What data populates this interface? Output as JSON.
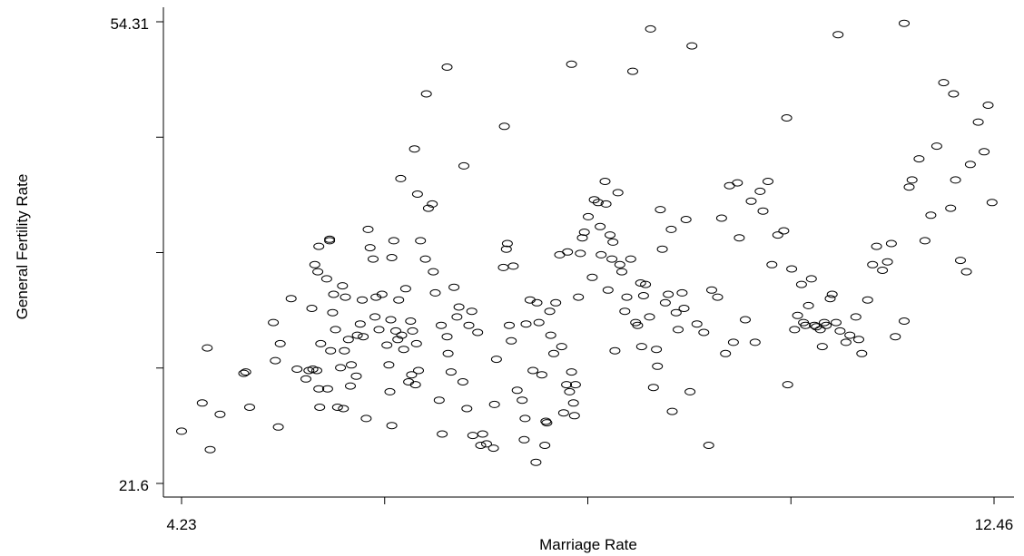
{
  "chart_data": {
    "type": "scatter",
    "title": "",
    "xlabel": "Marriage Rate",
    "ylabel": "General Fertility Rate",
    "xlim": [
      4.23,
      12.46
    ],
    "ylim": [
      21.6,
      54.31
    ],
    "x_tick_labels": [
      "4.23",
      "12.46"
    ],
    "y_tick_labels": [
      "54.31",
      "21.6"
    ],
    "grid": false,
    "marker": "hollow-circle",
    "points": [
      [
        4.23,
        25.3
      ],
      [
        4.49,
        31.2
      ],
      [
        4.52,
        24.0
      ],
      [
        4.44,
        27.3
      ],
      [
        4.62,
        26.5
      ],
      [
        4.88,
        29.5
      ],
      [
        4.86,
        29.4
      ],
      [
        4.92,
        27.0
      ],
      [
        5.18,
        30.3
      ],
      [
        5.23,
        31.5
      ],
      [
        5.16,
        33.0
      ],
      [
        5.34,
        34.7
      ],
      [
        5.21,
        25.6
      ],
      [
        5.4,
        29.7
      ],
      [
        5.49,
        29.0
      ],
      [
        5.52,
        29.6
      ],
      [
        5.6,
        29.6
      ],
      [
        5.62,
        28.3
      ],
      [
        5.63,
        27.0
      ],
      [
        5.64,
        31.5
      ],
      [
        5.56,
        29.7
      ],
      [
        5.58,
        37.1
      ],
      [
        5.55,
        34.0
      ],
      [
        5.62,
        38.4
      ],
      [
        5.61,
        36.6
      ],
      [
        5.73,
        38.8
      ],
      [
        5.7,
        36.1
      ],
      [
        5.73,
        38.9
      ],
      [
        5.76,
        33.7
      ],
      [
        5.74,
        31.0
      ],
      [
        5.77,
        35.0
      ],
      [
        5.79,
        32.5
      ],
      [
        5.71,
        28.3
      ],
      [
        5.81,
        27.0
      ],
      [
        5.84,
        29.8
      ],
      [
        5.89,
        34.8
      ],
      [
        5.86,
        35.6
      ],
      [
        5.87,
        26.9
      ],
      [
        5.95,
        30.0
      ],
      [
        5.88,
        31.0
      ],
      [
        5.92,
        31.8
      ],
      [
        5.94,
        28.5
      ],
      [
        6.0,
        29.2
      ],
      [
        6.01,
        32.1
      ],
      [
        6.04,
        32.9
      ],
      [
        6.06,
        34.6
      ],
      [
        6.07,
        32.0
      ],
      [
        6.1,
        26.2
      ],
      [
        6.12,
        39.6
      ],
      [
        6.14,
        38.3
      ],
      [
        6.17,
        37.5
      ],
      [
        6.2,
        34.8
      ],
      [
        6.19,
        33.4
      ],
      [
        6.23,
        32.5
      ],
      [
        6.26,
        35.0
      ],
      [
        6.31,
        31.4
      ],
      [
        6.33,
        30.0
      ],
      [
        6.34,
        28.1
      ],
      [
        6.35,
        33.2
      ],
      [
        6.36,
        37.6
      ],
      [
        6.38,
        38.8
      ],
      [
        6.4,
        32.4
      ],
      [
        6.42,
        31.8
      ],
      [
        6.43,
        34.6
      ],
      [
        6.46,
        32.1
      ],
      [
        6.48,
        31.1
      ],
      [
        6.5,
        35.4
      ],
      [
        6.53,
        28.8
      ],
      [
        6.55,
        33.1
      ],
      [
        6.56,
        29.3
      ],
      [
        6.57,
        32.4
      ],
      [
        6.6,
        28.6
      ],
      [
        6.61,
        31.5
      ],
      [
        6.63,
        29.6
      ],
      [
        6.65,
        38.8
      ],
      [
        6.7,
        37.5
      ],
      [
        6.77,
        41.4
      ],
      [
        6.59,
        45.3
      ],
      [
        6.62,
        42.1
      ],
      [
        6.45,
        43.2
      ],
      [
        6.71,
        49.2
      ],
      [
        6.73,
        41.1
      ],
      [
        6.78,
        36.6
      ],
      [
        6.8,
        35.1
      ],
      [
        6.84,
        27.5
      ],
      [
        6.86,
        32.8
      ],
      [
        6.87,
        25.1
      ],
      [
        6.92,
        32.0
      ],
      [
        6.93,
        30.8
      ],
      [
        6.96,
        29.5
      ],
      [
        6.99,
        35.5
      ],
      [
        7.02,
        33.4
      ],
      [
        7.04,
        34.1
      ],
      [
        7.08,
        28.8
      ],
      [
        7.09,
        44.1
      ],
      [
        7.12,
        26.9
      ],
      [
        7.14,
        32.8
      ],
      [
        7.17,
        33.8
      ],
      [
        7.18,
        25.0
      ],
      [
        7.23,
        32.3
      ],
      [
        7.26,
        24.3
      ],
      [
        7.28,
        25.1
      ],
      [
        7.32,
        24.4
      ],
      [
        7.39,
        24.1
      ],
      [
        7.4,
        27.2
      ],
      [
        7.42,
        30.4
      ],
      [
        7.49,
        36.9
      ],
      [
        7.52,
        38.2
      ],
      [
        7.53,
        38.6
      ],
      [
        7.55,
        32.8
      ],
      [
        7.57,
        31.7
      ],
      [
        7.59,
        37.0
      ],
      [
        7.63,
        28.2
      ],
      [
        7.68,
        27.5
      ],
      [
        7.7,
        24.7
      ],
      [
        7.71,
        26.2
      ],
      [
        7.72,
        32.9
      ],
      [
        7.76,
        34.6
      ],
      [
        7.79,
        29.6
      ],
      [
        7.82,
        23.1
      ],
      [
        7.83,
        34.4
      ],
      [
        7.85,
        33.0
      ],
      [
        7.88,
        29.3
      ],
      [
        7.91,
        24.3
      ],
      [
        7.92,
        26.0
      ],
      [
        7.93,
        25.9
      ],
      [
        7.96,
        33.8
      ],
      [
        7.97,
        32.1
      ],
      [
        8.0,
        30.8
      ],
      [
        8.02,
        34.4
      ],
      [
        8.06,
        37.8
      ],
      [
        8.08,
        31.3
      ],
      [
        8.1,
        26.6
      ],
      [
        8.13,
        28.6
      ],
      [
        8.14,
        38.0
      ],
      [
        8.16,
        28.1
      ],
      [
        8.18,
        29.5
      ],
      [
        8.2,
        27.3
      ],
      [
        8.21,
        26.4
      ],
      [
        8.22,
        28.6
      ],
      [
        8.25,
        34.8
      ],
      [
        8.27,
        37.9
      ],
      [
        8.29,
        39.0
      ],
      [
        8.31,
        39.4
      ],
      [
        8.35,
        40.5
      ],
      [
        8.39,
        36.2
      ],
      [
        8.41,
        41.7
      ],
      [
        8.45,
        41.5
      ],
      [
        8.47,
        39.8
      ],
      [
        8.48,
        37.8
      ],
      [
        8.52,
        43.0
      ],
      [
        8.53,
        41.4
      ],
      [
        8.55,
        35.3
      ],
      [
        8.57,
        39.2
      ],
      [
        8.59,
        37.5
      ],
      [
        8.6,
        38.7
      ],
      [
        8.62,
        31.0
      ],
      [
        8.65,
        42.2
      ],
      [
        8.67,
        37.1
      ],
      [
        8.69,
        36.6
      ],
      [
        8.72,
        33.8
      ],
      [
        8.74,
        34.8
      ],
      [
        8.78,
        37.5
      ],
      [
        8.83,
        33.0
      ],
      [
        8.85,
        32.8
      ],
      [
        8.88,
        35.8
      ],
      [
        8.89,
        31.3
      ],
      [
        8.91,
        34.9
      ],
      [
        8.93,
        35.7
      ],
      [
        8.97,
        33.4
      ],
      [
        9.01,
        28.4
      ],
      [
        9.04,
        31.1
      ],
      [
        9.05,
        29.9
      ],
      [
        9.08,
        41.0
      ],
      [
        9.1,
        38.2
      ],
      [
        9.13,
        34.4
      ],
      [
        9.16,
        35.0
      ],
      [
        9.19,
        39.6
      ],
      [
        9.2,
        26.7
      ],
      [
        9.24,
        33.7
      ],
      [
        9.26,
        32.5
      ],
      [
        9.3,
        35.1
      ],
      [
        9.32,
        34.0
      ],
      [
        9.34,
        40.3
      ],
      [
        9.38,
        28.1
      ],
      [
        9.45,
        32.9
      ],
      [
        9.52,
        32.3
      ],
      [
        9.57,
        24.3
      ],
      [
        9.6,
        35.3
      ],
      [
        9.66,
        34.8
      ],
      [
        9.7,
        40.4
      ],
      [
        9.74,
        30.8
      ],
      [
        9.78,
        42.7
      ],
      [
        9.82,
        31.6
      ],
      [
        9.86,
        42.9
      ],
      [
        9.88,
        39.0
      ],
      [
        9.94,
        33.2
      ],
      [
        10.0,
        41.6
      ],
      [
        10.04,
        31.6
      ],
      [
        10.09,
        42.3
      ],
      [
        10.12,
        40.9
      ],
      [
        10.17,
        43.0
      ],
      [
        10.21,
        37.1
      ],
      [
        10.27,
        39.2
      ],
      [
        10.33,
        39.5
      ],
      [
        10.37,
        28.6
      ],
      [
        10.41,
        36.8
      ],
      [
        10.44,
        32.5
      ],
      [
        10.47,
        33.5
      ],
      [
        10.51,
        35.7
      ],
      [
        10.53,
        33.0
      ],
      [
        10.55,
        32.8
      ],
      [
        10.58,
        34.2
      ],
      [
        10.61,
        36.1
      ],
      [
        10.64,
        32.8
      ],
      [
        10.66,
        32.7
      ],
      [
        10.7,
        32.5
      ],
      [
        10.72,
        31.3
      ],
      [
        10.74,
        33.0
      ],
      [
        10.76,
        32.8
      ],
      [
        10.8,
        34.7
      ],
      [
        10.82,
        35.0
      ],
      [
        10.86,
        33.0
      ],
      [
        10.9,
        32.4
      ],
      [
        10.96,
        31.6
      ],
      [
        11.0,
        32.1
      ],
      [
        11.06,
        33.4
      ],
      [
        11.09,
        31.8
      ],
      [
        11.12,
        30.8
      ],
      [
        11.18,
        34.6
      ],
      [
        11.23,
        37.1
      ],
      [
        11.27,
        38.4
      ],
      [
        11.33,
        36.7
      ],
      [
        11.38,
        37.3
      ],
      [
        11.42,
        38.6
      ],
      [
        11.46,
        32.0
      ],
      [
        11.55,
        33.1
      ],
      [
        11.63,
        43.1
      ],
      [
        11.7,
        44.6
      ],
      [
        11.76,
        38.8
      ],
      [
        11.82,
        40.6
      ],
      [
        11.88,
        45.5
      ],
      [
        11.95,
        50.0
      ],
      [
        12.02,
        41.1
      ],
      [
        12.07,
        43.1
      ],
      [
        12.12,
        37.4
      ],
      [
        12.18,
        36.6
      ],
      [
        12.22,
        44.2
      ],
      [
        12.3,
        47.2
      ],
      [
        12.36,
        45.1
      ],
      [
        12.4,
        48.4
      ],
      [
        12.44,
        41.5
      ],
      [
        6.36,
        25.7
      ],
      [
        6.92,
        51.1
      ],
      [
        7.5,
        46.9
      ],
      [
        8.18,
        51.3
      ],
      [
        8.98,
        53.8
      ],
      [
        8.8,
        50.8
      ],
      [
        9.4,
        52.6
      ],
      [
        10.36,
        47.5
      ],
      [
        10.88,
        53.4
      ],
      [
        11.55,
        54.2
      ],
      [
        11.6,
        42.6
      ],
      [
        12.05,
        49.2
      ]
    ]
  }
}
